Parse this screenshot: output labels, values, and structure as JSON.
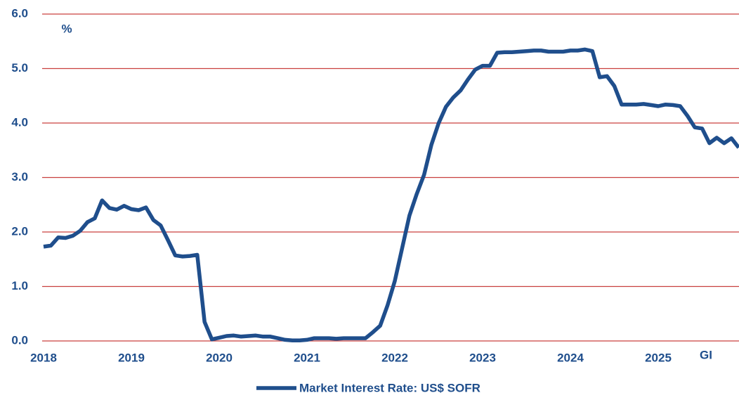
{
  "chart_data": {
    "type": "line",
    "y_label": "%",
    "source_note": "GI",
    "categories": [
      "2018",
      null,
      null,
      null,
      null,
      null,
      null,
      null,
      null,
      null,
      null,
      null,
      "2019",
      null,
      null,
      null,
      null,
      null,
      null,
      null,
      null,
      null,
      null,
      null,
      "2020",
      null,
      null,
      null,
      null,
      null,
      null,
      null,
      null,
      null,
      null,
      null,
      "2021",
      null,
      null,
      null,
      null,
      null,
      null,
      null,
      null,
      null,
      null,
      null,
      "2022",
      null,
      null,
      null,
      null,
      null,
      null,
      null,
      null,
      null,
      null,
      null,
      "2023",
      null,
      null,
      null,
      null,
      null,
      null,
      null,
      null,
      null,
      null,
      null,
      "2024",
      null,
      null,
      null,
      null,
      null,
      null,
      null,
      null,
      null,
      null,
      null,
      "2025",
      null,
      null,
      null,
      null,
      null,
      null,
      null,
      null,
      null,
      null,
      null
    ],
    "series": [
      {
        "name": "Market Interest Rate: US$ SOFR",
        "color": "#1f4e8c",
        "values": [
          1.73,
          1.75,
          1.9,
          1.89,
          1.93,
          2.02,
          2.18,
          2.25,
          2.58,
          2.44,
          2.41,
          2.48,
          2.42,
          2.4,
          2.45,
          2.22,
          2.12,
          1.85,
          1.57,
          1.55,
          1.56,
          1.58,
          0.35,
          0.03,
          0.06,
          0.09,
          0.1,
          0.08,
          0.09,
          0.1,
          0.08,
          0.08,
          0.05,
          0.02,
          0.01,
          0.01,
          0.02,
          0.05,
          0.05,
          0.05,
          0.04,
          0.05,
          0.05,
          0.05,
          0.05,
          0.16,
          0.28,
          0.65,
          1.1,
          1.7,
          2.3,
          2.7,
          3.05,
          3.6,
          4.0,
          4.3,
          4.47,
          4.6,
          4.8,
          4.98,
          5.05,
          5.05,
          5.29,
          5.3,
          5.3,
          5.31,
          5.32,
          5.33,
          5.33,
          5.31,
          5.31,
          5.31,
          5.33,
          5.33,
          5.35,
          5.32,
          4.84,
          4.86,
          4.68,
          4.34,
          4.34,
          4.34,
          4.35,
          4.33,
          4.31,
          4.34,
          4.33,
          4.31,
          4.13,
          3.92,
          3.9,
          3.63,
          3.73,
          3.63,
          3.72,
          3.55
        ]
      }
    ],
    "ylim": [
      0,
      6
    ],
    "yticks": [
      {
        "value": 0,
        "label": "0.0"
      },
      {
        "value": 1,
        "label": "1.0"
      },
      {
        "value": 2,
        "label": "2.0"
      },
      {
        "value": 3,
        "label": "3.0"
      },
      {
        "value": 4,
        "label": "4.0"
      },
      {
        "value": 5,
        "label": "5.0"
      },
      {
        "value": 6,
        "label": "6.0"
      }
    ],
    "grid": true,
    "grid_color": "#c9403f",
    "legend": "bottom"
  }
}
